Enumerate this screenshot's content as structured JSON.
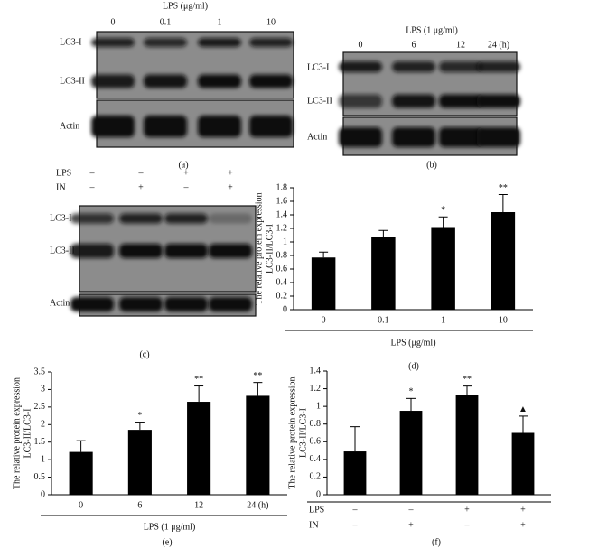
{
  "panels": {
    "a": {
      "title": "LPS (μg/ml)",
      "lanes": [
        "0",
        "0.1",
        "1",
        "10"
      ],
      "rows": [
        "LC3-I",
        "LC3-II",
        "Actin"
      ],
      "caption": "(a)"
    },
    "b": {
      "title": "LPS (1 μg/ml)",
      "lanes": [
        "0",
        "6",
        "12",
        "24 (h)"
      ],
      "rows": [
        "LC3-I",
        "LC3-II",
        "Actin"
      ],
      "caption": "(b)"
    },
    "c": {
      "treatments": [
        {
          "name": "LPS",
          "values": [
            "–",
            "–",
            "+",
            "+"
          ]
        },
        {
          "name": "IN",
          "values": [
            "–",
            "+",
            "–",
            "+"
          ]
        }
      ],
      "rows": [
        "LC3-I",
        "LC3-II",
        "Actin"
      ],
      "caption": "(c)"
    }
  },
  "chart_data": [
    {
      "type": "bar",
      "ylabel": [
        "The relative protein expression",
        "LC3-II/LC3-I"
      ],
      "xlabel": "LPS (μg/ml)",
      "caption": "(d)",
      "categories": [
        "0",
        "0.1",
        "1",
        "10"
      ],
      "values": [
        0.77,
        1.07,
        1.22,
        1.44
      ],
      "errors": [
        0.08,
        0.1,
        0.15,
        0.26
      ],
      "annotations": [
        null,
        null,
        "*",
        "**"
      ],
      "color": "#000000",
      "ylim": [
        0,
        1.8
      ],
      "yticks": [
        0,
        0.2,
        0.4,
        0.6,
        0.8,
        1,
        1.2,
        1.4,
        1.6,
        1.8
      ]
    },
    {
      "type": "bar",
      "ylabel": [
        "The relative protein expression",
        "LC3-II/LC3-I"
      ],
      "xlabel": "LPS (1 μg/ml)",
      "caption": "(e)",
      "categories": [
        "0",
        "6",
        "12",
        "24 (h)"
      ],
      "values": [
        1.22,
        1.85,
        2.65,
        2.82
      ],
      "errors": [
        0.32,
        0.22,
        0.45,
        0.38
      ],
      "annotations": [
        null,
        "*",
        "**",
        "**"
      ],
      "color": "#000000",
      "ylim": [
        0,
        3.5
      ],
      "yticks": [
        0,
        0.5,
        1,
        1.5,
        2,
        2.5,
        3,
        3.5
      ]
    },
    {
      "type": "bar",
      "ylabel": [
        "The relative protein expression",
        "LC3-II/LC3-I"
      ],
      "caption": "(f)",
      "treatments": [
        {
          "name": "LPS",
          "values": [
            "–",
            "–",
            "+",
            "+"
          ]
        },
        {
          "name": "IN",
          "values": [
            "–",
            "+",
            "–",
            "+"
          ]
        }
      ],
      "values": [
        0.49,
        0.95,
        1.13,
        0.7
      ],
      "errors": [
        0.28,
        0.14,
        0.1,
        0.19
      ],
      "annotations": [
        null,
        "*",
        "**",
        "▲"
      ],
      "color": "#000000",
      "ylim": [
        0,
        1.4
      ],
      "yticks": [
        0,
        0.2,
        0.4,
        0.6,
        0.8,
        1,
        1.2,
        1.4
      ]
    }
  ]
}
